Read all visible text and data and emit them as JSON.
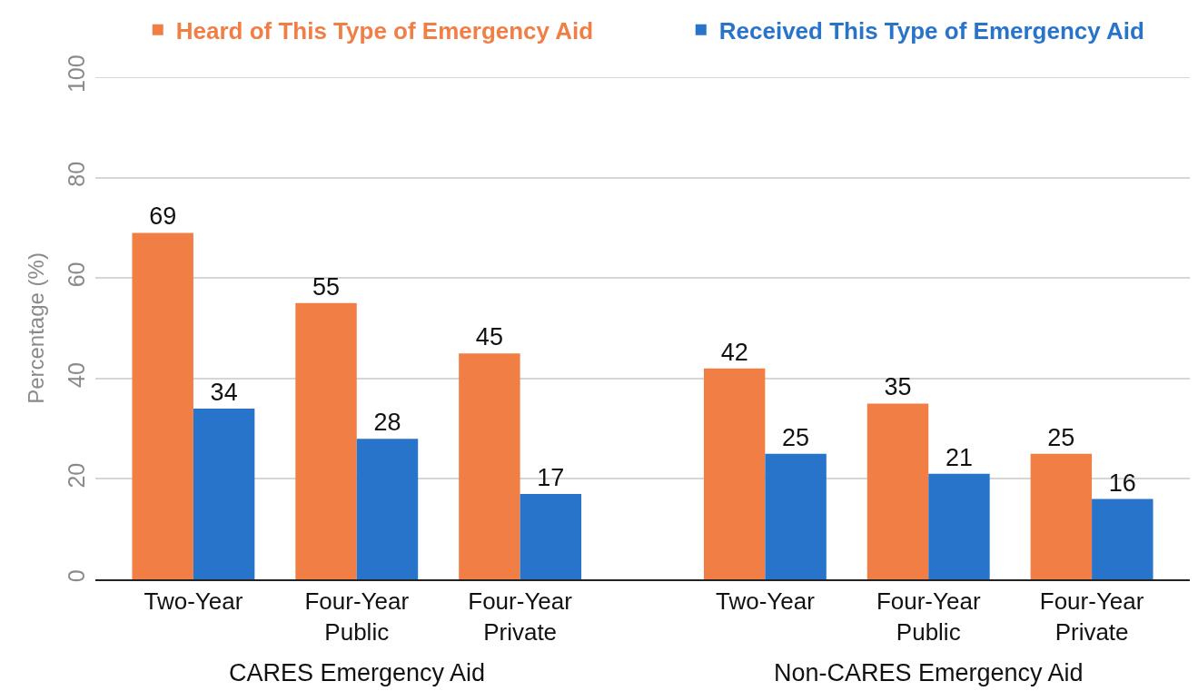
{
  "chart_data": {
    "type": "bar",
    "categories": [
      "Two-Year",
      "Four-Year\nPublic",
      "Four-Year\nPrivate",
      "Two-Year",
      "Four-Year\nPublic",
      "Four-Year\nPrivate"
    ],
    "series": [
      {
        "name": "Heard of This Type of Emergency Aid",
        "color": "#f07e45",
        "values": [
          69,
          55,
          45,
          42,
          35,
          25
        ]
      },
      {
        "name": "Received This Type of Emergency Aid",
        "color": "#2874cb",
        "values": [
          34,
          28,
          17,
          25,
          21,
          16
        ]
      }
    ],
    "ylabel": "Percentage (%)",
    "ylim": [
      0,
      100
    ],
    "yticks": [
      0,
      20,
      40,
      60,
      80,
      100
    ],
    "grid": "y",
    "legend": "top",
    "data_labels": true,
    "annotations": [
      "CARES Emergency Aid",
      "Non-CARES Emergency Aid"
    ]
  }
}
